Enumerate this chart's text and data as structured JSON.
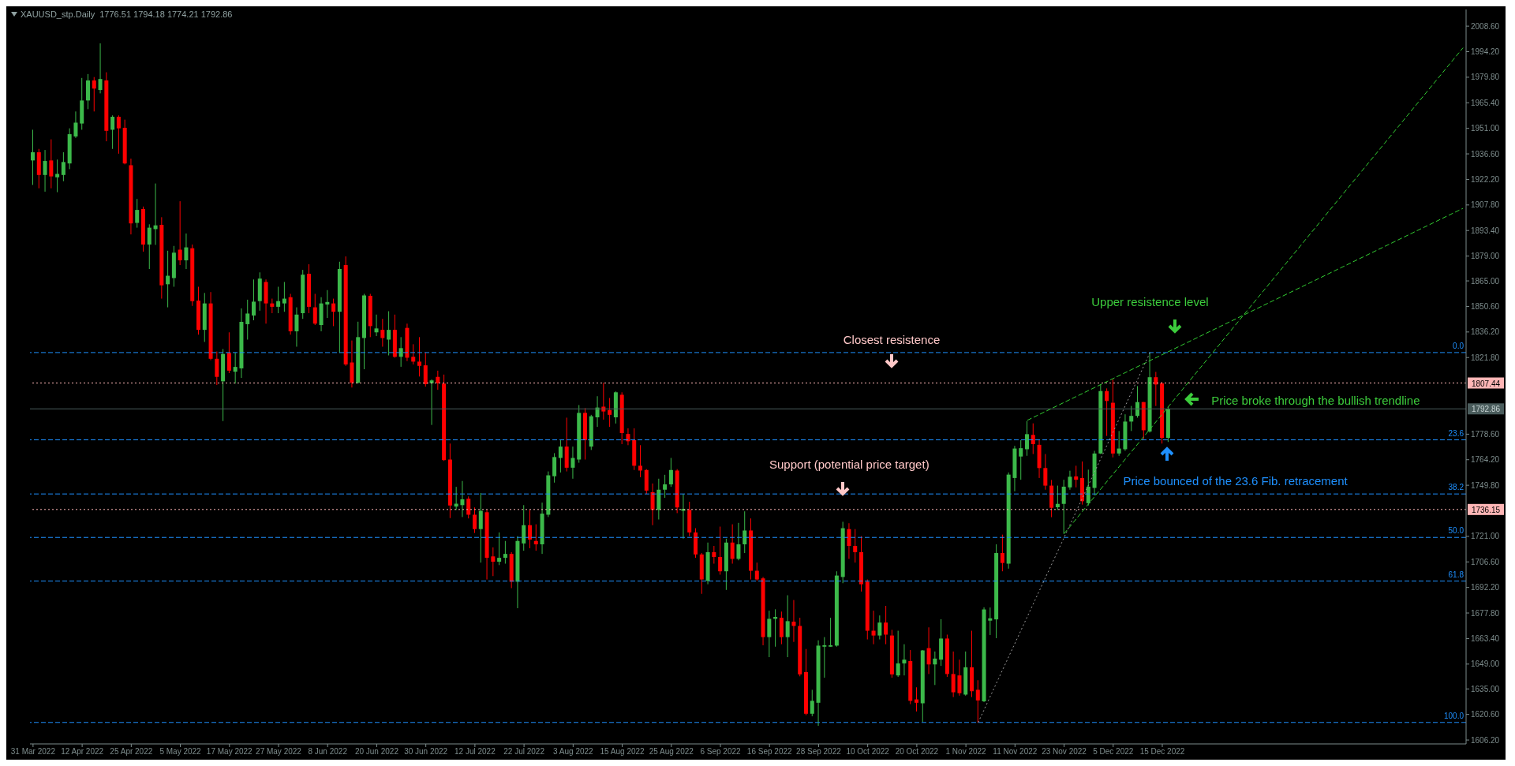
{
  "chart_data": {
    "type": "candlestick",
    "title": "XAUUSD_stp.Daily  1776.51 1794.18 1774.21 1792.86",
    "categories": [
      "31 Mar 2022",
      null,
      null,
      null,
      null,
      null,
      null,
      null,
      "12 Apr 2022",
      null,
      null,
      null,
      null,
      null,
      null,
      null,
      "25 Apr 2022",
      null,
      null,
      null,
      null,
      null,
      null,
      null,
      "5 May 2022",
      null,
      null,
      null,
      null,
      null,
      null,
      null,
      "17 May 2022",
      null,
      null,
      null,
      null,
      null,
      null,
      null,
      "27 May 2022",
      null,
      null,
      null,
      null,
      null,
      null,
      null,
      "8 Jun 2022",
      null,
      null,
      null,
      null,
      null,
      null,
      null,
      "20 Jun 2022",
      null,
      null,
      null,
      null,
      null,
      null,
      null,
      "30 Jun 2022",
      null,
      null,
      null,
      null,
      null,
      null,
      null,
      "12 Jul 2022",
      null,
      null,
      null,
      null,
      null,
      null,
      null,
      "22 Jul 2022",
      null,
      null,
      null,
      null,
      null,
      null,
      null,
      "3 Aug 2022",
      null,
      null,
      null,
      null,
      null,
      null,
      null,
      "15 Aug 2022",
      null,
      null,
      null,
      null,
      null,
      null,
      null,
      "25 Aug 2022",
      null,
      null,
      null,
      null,
      null,
      null,
      null,
      "6 Sep 2022",
      null,
      null,
      null,
      null,
      null,
      null,
      null,
      "16 Sep 2022",
      null,
      null,
      null,
      null,
      null,
      null,
      null,
      "28 Sep 2022",
      null,
      null,
      null,
      null,
      null,
      null,
      null,
      "10 Oct 2022",
      null,
      null,
      null,
      null,
      null,
      null,
      null,
      "20 Oct 2022",
      null,
      null,
      null,
      null,
      null,
      null,
      null,
      "1 Nov 2022",
      null,
      null,
      null,
      null,
      null,
      null,
      null,
      "11 Nov 2022",
      null,
      null,
      null,
      null,
      null,
      null,
      null,
      "23 Nov 2022",
      null,
      null,
      null,
      null,
      null,
      null,
      null,
      "5 Dec 2022",
      null,
      null,
      null,
      null,
      null,
      null,
      null,
      "15 Dec 2022",
      null,
      null,
      null,
      null,
      null,
      null,
      null,
      null,
      null,
      null,
      null,
      null,
      null,
      null,
      null,
      null,
      null,
      null,
      null,
      null,
      null,
      null,
      null,
      null,
      null,
      null,
      null,
      null,
      null,
      null,
      null,
      null,
      null,
      null,
      null,
      null,
      null,
      null,
      null,
      null,
      null,
      null,
      null,
      null,
      null,
      null,
      null,
      null,
      null
    ],
    "ohlc": [
      [
        1932.9,
        1950.2,
        1919.1,
        1937.5
      ],
      [
        1937.5,
        1939.4,
        1917.2,
        1924.7
      ],
      [
        1924.7,
        1938.8,
        1915.3,
        1932.6
      ],
      [
        1932.9,
        1944.8,
        1917.2,
        1923.9
      ],
      [
        1923.4,
        1933.4,
        1915.0,
        1925.3
      ],
      [
        1924.7,
        1937.5,
        1921.2,
        1932.0
      ],
      [
        1931.2,
        1951.0,
        1928.0,
        1947.7
      ],
      [
        1946.4,
        1960.5,
        1945.6,
        1954.2
      ],
      [
        1953.7,
        1979.4,
        1950.2,
        1966.7
      ],
      [
        1966.7,
        1981.6,
        1961.8,
        1978.0
      ],
      [
        1978.0,
        1979.9,
        1960.5,
        1973.4
      ],
      [
        1972.6,
        1998.9,
        1970.7,
        1978.8
      ],
      [
        1978.0,
        1982.6,
        1943.7,
        1949.6
      ],
      [
        1950.2,
        1958.3,
        1939.4,
        1957.5
      ],
      [
        1957.5,
        1958.3,
        1936.7,
        1951.0
      ],
      [
        1951.3,
        1955.9,
        1930.7,
        1931.2
      ],
      [
        1930.2,
        1933.9,
        1891.2,
        1897.4
      ],
      [
        1897.7,
        1911.2,
        1895.0,
        1905.0
      ],
      [
        1905.5,
        1906.9,
        1881.5,
        1885.5
      ],
      [
        1885.5,
        1896.9,
        1871.7,
        1895.0
      ],
      [
        1894.2,
        1919.9,
        1885.3,
        1896.3
      ],
      [
        1896.6,
        1900.9,
        1855.0,
        1862.5
      ],
      [
        1863.1,
        1882.0,
        1850.1,
        1867.9
      ],
      [
        1866.6,
        1884.7,
        1861.7,
        1880.9
      ],
      [
        1882.6,
        1909.9,
        1873.9,
        1876.6
      ],
      [
        1876.6,
        1891.7,
        1871.7,
        1883.9
      ],
      [
        1883.4,
        1885.5,
        1850.9,
        1853.6
      ],
      [
        1853.9,
        1861.7,
        1834.7,
        1837.4
      ],
      [
        1837.4,
        1858.2,
        1830.6,
        1852.3
      ],
      [
        1852.3,
        1858.7,
        1820.3,
        1821.1
      ],
      [
        1821.1,
        1825.2,
        1806.3,
        1810.9
      ],
      [
        1808.4,
        1826.6,
        1786.0,
        1823.8
      ],
      [
        1824.4,
        1836.0,
        1813.0,
        1814.4
      ],
      [
        1813.8,
        1824.6,
        1807.1,
        1816.5
      ],
      [
        1815.7,
        1849.5,
        1810.3,
        1841.9
      ],
      [
        1840.6,
        1854.4,
        1831.9,
        1846.6
      ],
      [
        1845.5,
        1865.8,
        1842.8,
        1853.3
      ],
      [
        1853.6,
        1869.8,
        1848.2,
        1866.3
      ],
      [
        1864.4,
        1865.8,
        1840.9,
        1852.3
      ],
      [
        1852.3,
        1855.0,
        1846.8,
        1850.4
      ],
      [
        1850.4,
        1861.7,
        1846.8,
        1853.6
      ],
      [
        1852.3,
        1864.4,
        1847.6,
        1855.0
      ],
      [
        1855.8,
        1857.7,
        1834.7,
        1836.6
      ],
      [
        1836.6,
        1850.1,
        1827.9,
        1846.0
      ],
      [
        1846.8,
        1871.2,
        1843.6,
        1868.5
      ],
      [
        1869.0,
        1874.4,
        1846.8,
        1850.4
      ],
      [
        1850.1,
        1857.7,
        1840.1,
        1840.9
      ],
      [
        1840.1,
        1855.8,
        1836.6,
        1852.3
      ],
      [
        1851.7,
        1859.8,
        1844.1,
        1853.1
      ],
      [
        1852.3,
        1855.0,
        1839.5,
        1847.6
      ],
      [
        1847.6,
        1875.8,
        1824.4,
        1871.7
      ],
      [
        1873.9,
        1878.8,
        1817.1,
        1817.9
      ],
      [
        1819.0,
        1831.4,
        1804.9,
        1807.6
      ],
      [
        1807.6,
        1842.0,
        1807.1,
        1833.3
      ],
      [
        1832.8,
        1857.7,
        1815.2,
        1856.8
      ],
      [
        1856.6,
        1857.7,
        1833.3,
        1839.5
      ],
      [
        1836.0,
        1846.0,
        1833.9,
        1838.2
      ],
      [
        1837.4,
        1843.6,
        1827.9,
        1832.8
      ],
      [
        1831.9,
        1847.9,
        1823.0,
        1837.4
      ],
      [
        1837.4,
        1846.0,
        1821.7,
        1822.2
      ],
      [
        1822.2,
        1833.3,
        1816.6,
        1827.1
      ],
      [
        1838.5,
        1840.9,
        1819.8,
        1821.7
      ],
      [
        1822.2,
        1829.3,
        1817.9,
        1819.5
      ],
      [
        1819.5,
        1833.3,
        1811.1,
        1817.1
      ],
      [
        1817.4,
        1824.6,
        1805.4,
        1806.8
      ],
      [
        1807.3,
        1809.5,
        1783.8,
        1808.9
      ],
      [
        1810.9,
        1814.4,
        1803.6,
        1807.3
      ],
      [
        1807.1,
        1812.2,
        1763.5,
        1764.0
      ],
      [
        1764.3,
        1773.3,
        1731.3,
        1738.4
      ],
      [
        1737.8,
        1748.9,
        1735.9,
        1739.4
      ],
      [
        1738.6,
        1752.2,
        1731.9,
        1741.9
      ],
      [
        1742.2,
        1743.5,
        1731.1,
        1733.2
      ],
      [
        1733.2,
        1737.3,
        1722.9,
        1725.1
      ],
      [
        1725.1,
        1745.4,
        1706.2,
        1735.4
      ],
      [
        1734.6,
        1735.9,
        1696.7,
        1708.9
      ],
      [
        1709.7,
        1714.8,
        1698.6,
        1706.7
      ],
      [
        1706.7,
        1723.2,
        1704.8,
        1708.9
      ],
      [
        1708.9,
        1718.4,
        1705.6,
        1711.1
      ],
      [
        1711.1,
        1712.1,
        1691.8,
        1695.4
      ],
      [
        1695.4,
        1721.1,
        1680.5,
        1718.4
      ],
      [
        1717.0,
        1738.6,
        1712.9,
        1727.3
      ],
      [
        1727.3,
        1735.9,
        1714.3,
        1719.2
      ],
      [
        1718.4,
        1727.8,
        1712.9,
        1716.5
      ],
      [
        1716.5,
        1740.0,
        1711.1,
        1733.8
      ],
      [
        1733.2,
        1757.6,
        1731.9,
        1755.4
      ],
      [
        1754.9,
        1767.9,
        1751.3,
        1765.7
      ],
      [
        1765.2,
        1775.2,
        1757.0,
        1771.6
      ],
      [
        1771.6,
        1787.9,
        1757.6,
        1759.7
      ],
      [
        1759.7,
        1771.6,
        1753.5,
        1765.2
      ],
      [
        1764.3,
        1795.0,
        1762.5,
        1790.6
      ],
      [
        1790.6,
        1793.3,
        1764.3,
        1775.2
      ],
      [
        1771.6,
        1789.5,
        1769.7,
        1788.7
      ],
      [
        1788.1,
        1800.0,
        1782.7,
        1793.6
      ],
      [
        1794.1,
        1807.6,
        1786.8,
        1791.4
      ],
      [
        1792.2,
        1799.0,
        1782.7,
        1789.5
      ],
      [
        1788.1,
        1802.7,
        1784.6,
        1802.2
      ],
      [
        1800.8,
        1802.2,
        1773.0,
        1779.2
      ],
      [
        1778.7,
        1781.9,
        1772.4,
        1774.6
      ],
      [
        1775.2,
        1781.9,
        1758.4,
        1760.8
      ],
      [
        1760.8,
        1772.4,
        1754.3,
        1758.1
      ],
      [
        1758.4,
        1758.9,
        1744.9,
        1746.8
      ],
      [
        1745.9,
        1750.8,
        1727.3,
        1735.9
      ],
      [
        1735.9,
        1753.5,
        1730.5,
        1747.3
      ],
      [
        1747.3,
        1755.7,
        1742.7,
        1750.3
      ],
      [
        1750.3,
        1765.2,
        1748.9,
        1758.4
      ],
      [
        1758.1,
        1758.9,
        1734.1,
        1737.3
      ],
      [
        1735.4,
        1744.9,
        1719.7,
        1736.5
      ],
      [
        1735.9,
        1740.5,
        1721.1,
        1723.2
      ],
      [
        1723.2,
        1725.6,
        1708.9,
        1710.8
      ],
      [
        1710.8,
        1711.6,
        1688.6,
        1696.7
      ],
      [
        1695.9,
        1717.5,
        1694.0,
        1712.1
      ],
      [
        1712.1,
        1715.6,
        1705.6,
        1709.4
      ],
      [
        1709.4,
        1726.5,
        1699.4,
        1701.3
      ],
      [
        1701.3,
        1719.7,
        1690.8,
        1717.5
      ],
      [
        1717.5,
        1727.8,
        1705.6,
        1708.3
      ],
      [
        1708.3,
        1728.6,
        1707.5,
        1716.5
      ],
      [
        1716.5,
        1735.1,
        1711.6,
        1724.3
      ],
      [
        1724.3,
        1731.1,
        1696.7,
        1701.6
      ],
      [
        1701.6,
        1706.2,
        1695.9,
        1696.7
      ],
      [
        1697.3,
        1698.1,
        1659.6,
        1664.2
      ],
      [
        1664.2,
        1679.1,
        1652.9,
        1674.5
      ],
      [
        1674.5,
        1679.9,
        1658.8,
        1675.6
      ],
      [
        1675.1,
        1678.6,
        1660.2,
        1664.2
      ],
      [
        1664.2,
        1687.8,
        1652.9,
        1673.2
      ],
      [
        1672.9,
        1685.1,
        1661.5,
        1670.5
      ],
      [
        1670.5,
        1675.1,
        1642.1,
        1643.2
      ],
      [
        1644.5,
        1657.5,
        1620.2,
        1621.0
      ],
      [
        1621.0,
        1634.5,
        1619.6,
        1628.3
      ],
      [
        1627.2,
        1662.4,
        1614.2,
        1659.4
      ],
      [
        1658.8,
        1664.2,
        1641.3,
        1659.6
      ],
      [
        1658.8,
        1675.1,
        1658.8,
        1659.6
      ],
      [
        1659.4,
        1701.3,
        1658.8,
        1698.9
      ],
      [
        1698.1,
        1729.2,
        1694.6,
        1725.6
      ],
      [
        1725.1,
        1728.4,
        1708.3,
        1715.6
      ],
      [
        1715.6,
        1725.1,
        1706.2,
        1712.1
      ],
      [
        1712.1,
        1721.1,
        1689.9,
        1694.0
      ],
      [
        1695.4,
        1696.7,
        1662.9,
        1667.8
      ],
      [
        1667.8,
        1679.1,
        1660.2,
        1665.1
      ],
      [
        1665.1,
        1676.4,
        1662.9,
        1672.4
      ],
      [
        1672.4,
        1681.8,
        1660.2,
        1665.6
      ],
      [
        1665.1,
        1668.3,
        1641.3,
        1643.2
      ],
      [
        1642.6,
        1667.8,
        1641.8,
        1649.4
      ],
      [
        1649.4,
        1660.2,
        1642.6,
        1651.5
      ],
      [
        1650.7,
        1656.9,
        1626.4,
        1628.3
      ],
      [
        1629.1,
        1635.9,
        1622.3,
        1627.2
      ],
      [
        1626.9,
        1656.9,
        1616.4,
        1656.7
      ],
      [
        1658.0,
        1669.7,
        1643.4,
        1648.8
      ],
      [
        1648.8,
        1656.1,
        1637.2,
        1652.1
      ],
      [
        1651.5,
        1674.3,
        1648.0,
        1663.4
      ],
      [
        1663.4,
        1665.6,
        1641.8,
        1643.4
      ],
      [
        1643.4,
        1656.1,
        1630.4,
        1633.1
      ],
      [
        1642.6,
        1651.5,
        1631.2,
        1632.6
      ],
      [
        1631.8,
        1656.1,
        1631.2,
        1647.2
      ],
      [
        1647.2,
        1667.8,
        1630.4,
        1633.7
      ],
      [
        1634.5,
        1639.9,
        1616.1,
        1628.5
      ],
      [
        1628.0,
        1681.0,
        1627.6,
        1679.8
      ],
      [
        1673.5,
        1680.9,
        1665.4,
        1674.8
      ],
      [
        1674.2,
        1716.5,
        1663.6,
        1711.6
      ],
      [
        1711.6,
        1722.0,
        1701.3,
        1706.0
      ],
      [
        1705.6,
        1757.0,
        1702.8,
        1755.8
      ],
      [
        1753.9,
        1772.0,
        1746.4,
        1770.5
      ],
      [
        1766.0,
        1775.2,
        1752.9,
        1770.7
      ],
      [
        1770.1,
        1786.0,
        1766.4,
        1778.6
      ],
      [
        1778.2,
        1784.7,
        1767.4,
        1773.0
      ],
      [
        1772.6,
        1775.2,
        1753.9,
        1759.5
      ],
      [
        1759.5,
        1767.4,
        1747.3,
        1749.6
      ],
      [
        1749.6,
        1752.8,
        1731.8,
        1737.1
      ],
      [
        1737.4,
        1749.6,
        1735.9,
        1739.3
      ],
      [
        1739.3,
        1752.9,
        1722.5,
        1749.0
      ],
      [
        1748.6,
        1758.0,
        1747.3,
        1754.6
      ],
      [
        1754.8,
        1760.8,
        1748.6,
        1752.9
      ],
      [
        1753.9,
        1763.2,
        1738.9,
        1740.8
      ],
      [
        1739.7,
        1758.6,
        1738.4,
        1749.0
      ],
      [
        1748.3,
        1769.2,
        1744.0,
        1767.7
      ],
      [
        1767.7,
        1806.6,
        1767.4,
        1802.9
      ],
      [
        1802.9,
        1804.4,
        1777.6,
        1797.3
      ],
      [
        1796.3,
        1809.4,
        1765.5,
        1767.7
      ],
      [
        1767.7,
        1780.4,
        1766.4,
        1770.5
      ],
      [
        1770.1,
        1789.8,
        1769.2,
        1785.7
      ],
      [
        1785.7,
        1794.5,
        1780.4,
        1788.9
      ],
      [
        1788.9,
        1805.7,
        1787.9,
        1796.7
      ],
      [
        1796.7,
        1796.7,
        1775.8,
        1780.8
      ],
      [
        1780.1,
        1824.6,
        1779.5,
        1810.7
      ],
      [
        1810.7,
        1813.7,
        1794.5,
        1806.6
      ],
      [
        1807.2,
        1808.1,
        1773.3,
        1776.5
      ],
      [
        1776.51,
        1794.18,
        1774.21,
        1792.86
      ],
      null,
      null,
      null,
      null,
      null,
      null,
      null,
      null,
      null,
      null,
      null,
      null,
      null,
      null,
      null,
      null,
      null,
      null,
      null,
      null,
      null,
      null,
      null,
      null,
      null,
      null,
      null,
      null,
      null,
      null,
      null,
      null,
      null,
      null,
      null,
      null,
      null,
      null,
      null,
      null,
      null,
      null,
      null,
      null,
      null,
      null,
      null,
      null
    ],
    "colors": [
      "#3cb94a",
      "#ff0000",
      "#3cb94a",
      "#ff0000",
      "#3cb94a",
      "#3cb94a",
      "#3cb94a",
      "#3cb94a",
      "#3cb94a",
      "#3cb94a",
      "#ff0000",
      "#3cb94a",
      "#ff0000",
      "#3cb94a",
      "#ff0000",
      "#ff0000",
      "#ff0000",
      "#3cb94a",
      "#ff0000",
      "#3cb94a",
      "#3cb94a",
      "#ff0000",
      "#3cb94a",
      "#3cb94a",
      "#ff0000",
      "#3cb94a",
      "#ff0000",
      "#ff0000",
      "#3cb94a",
      "#ff0000",
      "#ff0000",
      "#3cb94a",
      "#ff0000",
      "#3cb94a",
      "#3cb94a",
      "#3cb94a",
      "#3cb94a",
      "#3cb94a",
      "#ff0000",
      "#ff0000",
      "#3cb94a",
      "#3cb94a",
      "#ff0000",
      "#3cb94a",
      "#3cb94a",
      "#ff0000",
      "#ff0000",
      "#3cb94a",
      "#3cb94a",
      "#ff0000",
      "#3cb94a",
      "#ff0000",
      "#ff0000",
      "#3cb94a",
      "#3cb94a",
      "#ff0000",
      "#3cb94a",
      "#ff0000",
      "#3cb94a",
      "#ff0000",
      "#3cb94a",
      "#ff0000",
      "#ff0000",
      "#ff0000",
      "#ff0000",
      "#3cb94a",
      "#ff0000",
      "#ff0000",
      "#ff0000",
      "#3cb94a",
      "#3cb94a",
      "#ff0000",
      "#ff0000",
      "#3cb94a",
      "#ff0000",
      "#ff0000",
      "#3cb94a",
      "#3cb94a",
      "#ff0000",
      "#3cb94a",
      "#3cb94a",
      "#ff0000",
      "#ff0000",
      "#3cb94a",
      "#3cb94a",
      "#3cb94a",
      "#3cb94a",
      "#ff0000",
      "#3cb94a",
      "#3cb94a",
      "#ff0000",
      "#3cb94a",
      "#3cb94a",
      "#ff0000",
      "#ff0000",
      "#3cb94a",
      "#ff0000",
      "#ff0000",
      "#ff0000",
      "#ff0000",
      "#ff0000",
      "#ff0000",
      "#3cb94a",
      "#3cb94a",
      "#3cb94a",
      "#ff0000",
      "#3cb94a",
      "#ff0000",
      "#ff0000",
      "#ff0000",
      "#3cb94a",
      "#ff0000",
      "#ff0000",
      "#3cb94a",
      "#ff0000",
      "#3cb94a",
      "#3cb94a",
      "#ff0000",
      "#ff0000",
      "#ff0000",
      "#3cb94a",
      "#3cb94a",
      "#ff0000",
      "#3cb94a",
      "#ff0000",
      "#ff0000",
      "#ff0000",
      "#3cb94a",
      "#3cb94a",
      "#3cb94a",
      "#3cb94a",
      "#3cb94a",
      "#3cb94a",
      "#ff0000",
      "#ff0000",
      "#ff0000",
      "#ff0000",
      "#ff0000",
      "#3cb94a",
      "#ff0000",
      "#ff0000",
      "#3cb94a",
      "#3cb94a",
      "#ff0000",
      "#ff0000",
      "#3cb94a",
      "#ff0000",
      "#3cb94a",
      "#3cb94a",
      "#ff0000",
      "#ff0000",
      "#ff0000",
      "#3cb94a",
      "#ff0000",
      "#ff0000",
      "#3cb94a",
      "#3cb94a",
      "#3cb94a",
      "#ff0000",
      "#3cb94a",
      "#3cb94a",
      "#3cb94a",
      "#3cb94a",
      "#ff0000",
      "#ff0000",
      "#ff0000",
      "#ff0000",
      "#3cb94a",
      "#3cb94a",
      "#3cb94a",
      "#ff0000",
      "#ff0000",
      "#3cb94a",
      "#3cb94a",
      "#3cb94a",
      "#ff0000",
      "#ff0000",
      "#3cb94a",
      "#3cb94a",
      "#3cb94a",
      "#3cb94a",
      "#ff0000",
      "#3cb94a",
      "#ff0000",
      "#ff0000",
      "#3cb94a",
      null,
      null,
      null,
      null,
      null,
      null,
      null,
      null,
      null,
      null,
      null,
      null,
      null,
      null,
      null,
      null,
      null,
      null,
      null,
      null,
      null,
      null,
      null,
      null,
      null,
      null,
      null,
      null,
      null,
      null,
      null,
      null,
      null,
      null,
      null,
      null,
      null,
      null,
      null,
      null,
      null,
      null,
      null,
      null,
      null,
      null,
      null,
      null
    ],
    "series": [
      {
        "type": "line",
        "color": "#32cd32",
        "line_style": "dashed",
        "values": [
          null,
          null,
          null,
          null,
          null,
          null,
          null,
          null,
          null,
          null,
          null,
          null,
          null,
          null,
          null,
          null,
          null,
          null,
          null,
          null,
          null,
          null,
          null,
          null,
          null,
          null,
          null,
          null,
          null,
          null,
          null,
          null,
          null,
          null,
          null,
          null,
          null,
          null,
          null,
          null,
          null,
          null,
          null,
          null,
          null,
          null,
          null,
          null,
          null,
          null,
          null,
          null,
          null,
          null,
          null,
          null,
          null,
          null,
          null,
          null,
          null,
          null,
          null,
          null,
          null,
          null,
          null,
          null,
          null,
          null,
          null,
          null,
          null,
          null,
          null,
          null,
          null,
          null,
          null,
          null,
          null,
          null,
          null,
          null,
          null,
          null,
          null,
          null,
          null,
          null,
          null,
          null,
          null,
          null,
          null,
          null,
          null,
          null,
          null,
          null,
          null,
          null,
          null,
          null,
          null,
          null,
          null,
          null,
          null,
          null,
          null,
          null,
          null,
          null,
          null,
          null,
          null,
          null,
          null,
          null,
          null,
          null,
          null,
          null,
          null,
          null,
          null,
          null,
          null,
          null,
          null,
          null,
          null,
          null,
          null,
          null,
          null,
          null,
          null,
          null,
          null,
          null,
          null,
          null,
          null,
          null,
          null,
          null,
          null,
          null,
          null,
          null,
          null,
          null,
          null,
          null,
          null,
          null,
          null,
          null,
          null,
          null,
          1786.4,
          null,
          null,
          null,
          null,
          null,
          null,
          null,
          null,
          null,
          null,
          null,
          null,
          null,
          null,
          null,
          null,
          null,
          null,
          null,
          null,
          null,
          null,
          null,
          null,
          null,
          null,
          null,
          null,
          null,
          null,
          null,
          null,
          null,
          null,
          null,
          null,
          null,
          null,
          null,
          null,
          null,
          null,
          null,
          null,
          null,
          null,
          null,
          null,
          null,
          null,
          null,
          null,
          null,
          null,
          null,
          null,
          null,
          null,
          null,
          null,
          null,
          null,
          null,
          null,
          null,
          null,
          null,
          null,
          null,
          null,
          1905.9
        ]
      },
      {
        "type": "line",
        "color": "#32cd32",
        "line_style": "dashed",
        "values": [
          null,
          null,
          null,
          null,
          null,
          null,
          null,
          null,
          null,
          null,
          null,
          null,
          null,
          null,
          null,
          null,
          null,
          null,
          null,
          null,
          null,
          null,
          null,
          null,
          null,
          null,
          null,
          null,
          null,
          null,
          null,
          null,
          null,
          null,
          null,
          null,
          null,
          null,
          null,
          null,
          null,
          null,
          null,
          null,
          null,
          null,
          null,
          null,
          null,
          null,
          null,
          null,
          null,
          null,
          null,
          null,
          null,
          null,
          null,
          null,
          null,
          null,
          null,
          null,
          null,
          null,
          null,
          null,
          null,
          null,
          null,
          null,
          null,
          null,
          null,
          null,
          null,
          null,
          null,
          null,
          null,
          null,
          null,
          null,
          null,
          null,
          null,
          null,
          null,
          null,
          null,
          null,
          null,
          null,
          null,
          null,
          null,
          null,
          null,
          null,
          null,
          null,
          null,
          null,
          null,
          null,
          null,
          null,
          null,
          null,
          null,
          null,
          null,
          null,
          null,
          null,
          null,
          null,
          null,
          null,
          null,
          null,
          null,
          null,
          null,
          null,
          null,
          null,
          null,
          null,
          null,
          null,
          null,
          null,
          null,
          null,
          null,
          null,
          null,
          null,
          null,
          null,
          null,
          null,
          null,
          null,
          null,
          null,
          null,
          null,
          null,
          null,
          null,
          null,
          null,
          null,
          null,
          null,
          null,
          null,
          null,
          null,
          null,
          null,
          null,
          null,
          null,
          null,
          1722.5,
          null,
          null,
          null,
          null,
          null,
          null,
          null,
          null,
          null,
          null,
          null,
          null,
          null,
          null,
          null,
          null,
          null,
          null,
          null,
          null,
          null,
          null,
          null,
          null,
          null,
          null,
          null,
          null,
          null,
          null,
          null,
          null,
          null,
          null,
          null,
          null,
          null,
          null,
          null,
          null,
          null,
          null,
          null,
          null,
          null,
          null,
          null,
          null,
          null,
          null,
          null,
          null,
          null,
          null,
          null,
          null,
          null,
          null,
          null,
          null,
          null,
          null,
          null,
          null,
          1996.4
        ]
      },
      {
        "type": "line",
        "color": "#9a9a9a",
        "line_style": "dotted",
        "values": [
          null,
          null,
          null,
          null,
          null,
          null,
          null,
          null,
          null,
          null,
          null,
          null,
          null,
          null,
          null,
          null,
          null,
          null,
          null,
          null,
          null,
          null,
          null,
          null,
          null,
          null,
          null,
          null,
          null,
          null,
          null,
          null,
          null,
          null,
          null,
          null,
          null,
          null,
          null,
          null,
          null,
          null,
          null,
          null,
          null,
          null,
          null,
          null,
          null,
          null,
          null,
          null,
          null,
          null,
          null,
          null,
          null,
          null,
          null,
          null,
          null,
          null,
          null,
          null,
          null,
          null,
          null,
          null,
          null,
          null,
          null,
          null,
          null,
          null,
          null,
          null,
          null,
          null,
          null,
          null,
          null,
          null,
          null,
          null,
          null,
          null,
          null,
          null,
          null,
          null,
          null,
          null,
          null,
          null,
          null,
          null,
          null,
          null,
          null,
          null,
          null,
          null,
          null,
          null,
          null,
          null,
          null,
          null,
          null,
          null,
          null,
          null,
          null,
          null,
          null,
          null,
          null,
          null,
          null,
          null,
          null,
          null,
          null,
          null,
          null,
          null,
          null,
          null,
          null,
          null,
          null,
          null,
          null,
          null,
          null,
          null,
          null,
          null,
          null,
          null,
          null,
          null,
          null,
          null,
          null,
          null,
          null,
          null,
          null,
          null,
          null,
          null,
          null,
          null,
          1616.1,
          null,
          null,
          null,
          null,
          null,
          null,
          null,
          null,
          null,
          null,
          null,
          null,
          null,
          null,
          null,
          null,
          null,
          null,
          null,
          null,
          null,
          null,
          null,
          null,
          null,
          null,
          null,
          1824.6,
          null,
          null,
          null,
          null,
          null,
          null,
          null,
          null,
          null,
          null,
          null,
          null,
          null,
          null,
          null,
          null,
          null,
          null,
          null,
          null,
          null,
          null,
          null,
          null,
          null,
          null,
          null,
          null,
          null,
          null,
          null,
          null,
          null,
          null,
          null,
          null,
          null,
          null,
          null,
          null,
          null,
          null,
          null,
          null,
          null,
          null,
          null,
          null,
          null,
          null,
          null
        ]
      }
    ],
    "ylim": [
      1604,
      2018
    ],
    "yticks": [
      {
        "value": 2008.6,
        "label": "2008.60"
      },
      {
        "value": 1994.2,
        "label": "1994.20"
      },
      {
        "value": 1979.8,
        "label": "1979.80"
      },
      {
        "value": 1965.4,
        "label": "1965.40"
      },
      {
        "value": 1951,
        "label": "1951.00"
      },
      {
        "value": 1936.6,
        "label": "1936.60"
      },
      {
        "value": 1922.2,
        "label": "1922.20"
      },
      {
        "value": 1907.8,
        "label": "1907.80"
      },
      {
        "value": 1893.4,
        "label": "1893.40"
      },
      {
        "value": 1879,
        "label": "1879.00"
      },
      {
        "value": 1865,
        "label": "1865.00"
      },
      {
        "value": 1850.6,
        "label": "1850.60"
      },
      {
        "value": 1836.2,
        "label": "1836.20"
      },
      {
        "value": 1821.8,
        "label": "1821.80"
      },
      {
        "value": 1778.6,
        "label": "1778.60"
      },
      {
        "value": 1764.2,
        "label": "1764.20"
      },
      {
        "value": 1749.8,
        "label": "1749.80"
      },
      {
        "value": 1721,
        "label": "1721.00"
      },
      {
        "value": 1706.6,
        "label": "1706.60"
      },
      {
        "value": 1692.2,
        "label": "1692.20"
      },
      {
        "value": 1677.8,
        "label": "1677.80"
      },
      {
        "value": 1663.4,
        "label": "1663.40"
      },
      {
        "value": 1649,
        "label": "1649.00"
      },
      {
        "value": 1635,
        "label": "1635.00"
      },
      {
        "value": 1620.6,
        "label": "1620.60"
      },
      {
        "value": 1606.2,
        "label": "1606.20"
      }
    ],
    "ref_lines": [
      {
        "axis": "y",
        "value": 1807.44,
        "label": "1807.44",
        "color": "#ffb6b6",
        "line_style": "dotted"
      },
      {
        "axis": "y",
        "value": 1736.15,
        "label": "1736.15",
        "color": "#ffb6b6",
        "line_style": "dotted"
      },
      {
        "axis": "y",
        "value": 1792.86,
        "label": "1792.86",
        "color": "#4a5c5c",
        "line_style": "solid"
      },
      {
        "axis": "y",
        "value": 1824.6,
        "color": "#1e90ff",
        "line_style": "dashed"
      },
      {
        "axis": "y",
        "value": 1775.4,
        "color": "#1e90ff",
        "line_style": "dashed"
      },
      {
        "axis": "y",
        "value": 1744.9,
        "color": "#1e90ff",
        "line_style": "dashed"
      },
      {
        "axis": "y",
        "value": 1720.4,
        "color": "#1e90ff",
        "line_style": "dashed"
      },
      {
        "axis": "y",
        "value": 1695.8,
        "color": "#1e90ff",
        "line_style": "dashed"
      },
      {
        "axis": "y",
        "value": 1616.1,
        "color": "#1e90ff",
        "line_style": "dashed"
      }
    ],
    "annotations": [
      "Closest resistence",
      "Support (potential price target)",
      "Upper resistence level",
      "Price broke through the bullish trendline",
      "Price bounced of the 23.6 Fib. retracement",
      {
        "text": "0.0",
        "y": 1824.6
      },
      {
        "text": "23.6",
        "y": 1775.4
      },
      {
        "text": "38.2",
        "y": 1744.9
      },
      {
        "text": "50.0",
        "y": 1720.4
      },
      {
        "text": "61.8",
        "y": 1695.8
      },
      {
        "text": "100.0",
        "y": 1616.1
      }
    ]
  }
}
